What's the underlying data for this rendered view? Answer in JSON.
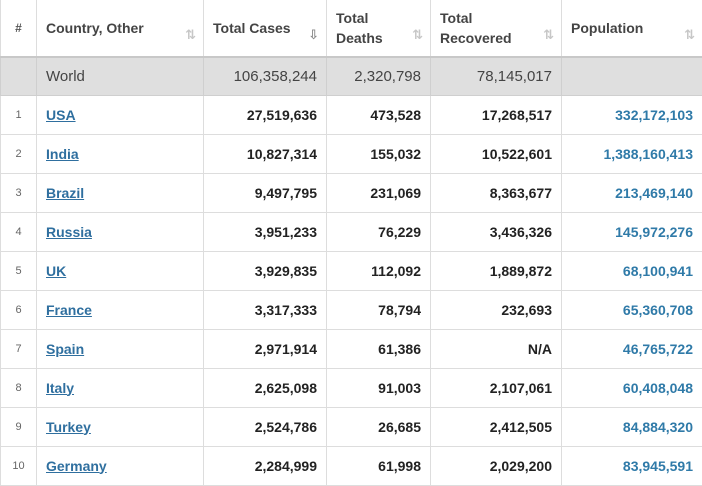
{
  "headers": [
    {
      "label": "#",
      "sort": ""
    },
    {
      "label": "Country, Other",
      "sort": "⇅"
    },
    {
      "label": "Total Cases",
      "sort": "⇩"
    },
    {
      "label": "Total Deaths",
      "sort": "⇅"
    },
    {
      "label": "Total Recovered",
      "sort": "⇅"
    },
    {
      "label": "Population",
      "sort": "⇅"
    }
  ],
  "world": {
    "name": "World",
    "cases": "106,358,244",
    "deaths": "2,320,798",
    "recovered": "78,145,017",
    "population": ""
  },
  "rows": [
    {
      "rank": "1",
      "country": "USA",
      "cases": "27,519,636",
      "deaths": "473,528",
      "recovered": "17,268,517",
      "population": "332,172,103"
    },
    {
      "rank": "2",
      "country": "India",
      "cases": "10,827,314",
      "deaths": "155,032",
      "recovered": "10,522,601",
      "population": "1,388,160,413"
    },
    {
      "rank": "3",
      "country": "Brazil",
      "cases": "9,497,795",
      "deaths": "231,069",
      "recovered": "8,363,677",
      "population": "213,469,140"
    },
    {
      "rank": "4",
      "country": "Russia",
      "cases": "3,951,233",
      "deaths": "76,229",
      "recovered": "3,436,326",
      "population": "145,972,276"
    },
    {
      "rank": "5",
      "country": "UK",
      "cases": "3,929,835",
      "deaths": "112,092",
      "recovered": "1,889,872",
      "population": "68,100,941"
    },
    {
      "rank": "6",
      "country": "France",
      "cases": "3,317,333",
      "deaths": "78,794",
      "recovered": "232,693",
      "population": "65,360,708"
    },
    {
      "rank": "7",
      "country": "Spain",
      "cases": "2,971,914",
      "deaths": "61,386",
      "recovered": "N/A",
      "population": "46,765,722"
    },
    {
      "rank": "8",
      "country": "Italy",
      "cases": "2,625,098",
      "deaths": "91,003",
      "recovered": "2,107,061",
      "population": "60,408,048"
    },
    {
      "rank": "9",
      "country": "Turkey",
      "cases": "2,524,786",
      "deaths": "26,685",
      "recovered": "2,412,505",
      "population": "84,884,320"
    },
    {
      "rank": "10",
      "country": "Germany",
      "cases": "2,284,999",
      "deaths": "61,998",
      "recovered": "2,029,200",
      "population": "83,945,591"
    }
  ]
}
